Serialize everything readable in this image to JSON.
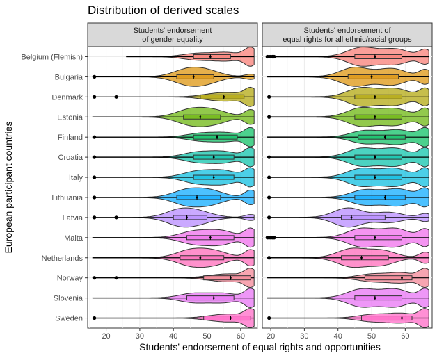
{
  "chart_data": {
    "type": "violin",
    "title": "Distribution of derived scales",
    "xlabel": "Students' endorsement of equal rights and opportunities",
    "ylabel": "European participant countries",
    "xticks": [
      20,
      30,
      40,
      50,
      60
    ],
    "countries": [
      "Belgium (Flemish)",
      "Bulgaria",
      "Denmark",
      "Estonia",
      "Finland",
      "Croatia",
      "Italy",
      "Lithuania",
      "Latvia",
      "Malta",
      "Netherlands",
      "Norway",
      "Slovenia",
      "Sweden"
    ],
    "colors": [
      "#F8766D",
      "#DB8E00",
      "#AEA200",
      "#64B200",
      "#00BD5C",
      "#00C1A7",
      "#00BADE",
      "#00A6FF",
      "#B385FF",
      "#EF67EB",
      "#FF63B6",
      "#F47F90",
      "#E76BF3",
      "#FF61C3"
    ],
    "panels": [
      {
        "strip": [
          "Students' endorsement",
          "of gender equality"
        ],
        "xlim": [
          14.5,
          65
        ],
        "series": [
          {
            "country": "Belgium (Flemish)",
            "min": 26,
            "max": 64,
            "q1": 46,
            "median": 51,
            "q3": 57,
            "peaks": [
              [
                47,
                0.35
              ],
              [
                56,
                0.45
              ],
              [
                63,
                0.95
              ]
            ],
            "outliers": []
          },
          {
            "country": "Bulgaria",
            "min": 16,
            "max": 64,
            "q1": 41,
            "median": 46,
            "q3": 52,
            "peaks": [
              [
                44,
                0.55
              ],
              [
                50,
                0.45
              ],
              [
                63,
                0.2
              ]
            ],
            "outliers": [
              16.5
            ]
          },
          {
            "country": "Denmark",
            "min": 16,
            "max": 64,
            "q1": 48,
            "median": 55,
            "q3": 61,
            "peaks": [
              [
                52,
                0.3
              ],
              [
                58,
                0.35
              ],
              [
                63,
                0.95
              ]
            ],
            "outliers": [
              16.5,
              23
            ]
          },
          {
            "country": "Estonia",
            "min": 16,
            "max": 64,
            "q1": 43,
            "median": 48,
            "q3": 54,
            "peaks": [
              [
                45,
                0.45
              ],
              [
                52,
                0.4
              ],
              [
                63,
                0.45
              ]
            ],
            "outliers": []
          },
          {
            "country": "Finland",
            "min": 16,
            "max": 64,
            "q1": 46,
            "median": 53,
            "q3": 59,
            "peaks": [
              [
                48,
                0.35
              ],
              [
                56,
                0.4
              ],
              [
                63,
                0.85
              ]
            ],
            "outliers": [
              16.5
            ]
          },
          {
            "country": "Croatia",
            "min": 16,
            "max": 64,
            "q1": 46,
            "median": 52,
            "q3": 58,
            "peaks": [
              [
                47,
                0.4
              ],
              [
                55,
                0.45
              ],
              [
                63,
                0.75
              ]
            ],
            "outliers": [
              16.5
            ]
          },
          {
            "country": "Italy",
            "min": 16,
            "max": 64,
            "q1": 46,
            "median": 52,
            "q3": 58,
            "peaks": [
              [
                47,
                0.4
              ],
              [
                55,
                0.45
              ],
              [
                63,
                0.6
              ]
            ],
            "outliers": [
              16.5
            ]
          },
          {
            "country": "Lithuania",
            "min": 16,
            "max": 64,
            "q1": 41,
            "median": 47,
            "q3": 54,
            "peaks": [
              [
                44,
                0.45
              ],
              [
                51,
                0.4
              ],
              [
                63,
                0.45
              ]
            ],
            "outliers": [
              16.5
            ]
          },
          {
            "country": "Latvia",
            "min": 16,
            "max": 64,
            "q1": 40,
            "median": 44,
            "q3": 50,
            "peaks": [
              [
                42,
                0.65
              ],
              [
                48,
                0.4
              ],
              [
                63,
                0.25
              ]
            ],
            "outliers": [
              16.5,
              23
            ]
          },
          {
            "country": "Malta",
            "min": 16,
            "max": 64,
            "q1": 44,
            "median": 51,
            "q3": 58,
            "peaks": [
              [
                46,
                0.4
              ],
              [
                54,
                0.45
              ],
              [
                63,
                0.6
              ]
            ],
            "outliers": []
          },
          {
            "country": "Netherlands",
            "min": 16,
            "max": 64,
            "q1": 42,
            "median": 48,
            "q3": 55,
            "peaks": [
              [
                45,
                0.45
              ],
              [
                52,
                0.4
              ],
              [
                63,
                0.5
              ]
            ],
            "outliers": []
          },
          {
            "country": "Norway",
            "min": 16,
            "max": 64,
            "q1": 49,
            "median": 57,
            "q3": 63,
            "peaks": [
              [
                53,
                0.3
              ],
              [
                59,
                0.35
              ],
              [
                63,
                1.0
              ]
            ],
            "outliers": [
              16.5,
              23
            ]
          },
          {
            "country": "Slovenia",
            "min": 16,
            "max": 64,
            "q1": 44,
            "median": 52,
            "q3": 58,
            "peaks": [
              [
                46,
                0.4
              ],
              [
                55,
                0.4
              ],
              [
                63,
                0.8
              ]
            ],
            "outliers": []
          },
          {
            "country": "Sweden",
            "min": 16,
            "max": 64,
            "q1": 49,
            "median": 57,
            "q3": 63,
            "peaks": [
              [
                53,
                0.3
              ],
              [
                59,
                0.35
              ],
              [
                63,
                1.0
              ]
            ],
            "outliers": [
              16.5
            ]
          }
        ]
      },
      {
        "strip": [
          "Students' endorsement of",
          "equal rights for all ethnic/racial groups"
        ],
        "xlim": [
          17.5,
          68
        ],
        "series": [
          {
            "country": "Belgium (Flemish)",
            "min": 19,
            "max": 67,
            "q1": 45,
            "median": 51,
            "q3": 59,
            "peaks": [
              [
                47,
                0.6
              ],
              [
                57,
                0.5
              ],
              [
                66,
                0.45
              ]
            ],
            "outliers": [
              19,
              19.5,
              20,
              20.5,
              21
            ]
          },
          {
            "country": "Bulgaria",
            "min": 19,
            "max": 67,
            "q1": 43,
            "median": 50,
            "q3": 58,
            "peaks": [
              [
                45,
                0.4
              ],
              [
                56,
                0.35
              ],
              [
                66,
                0.3
              ]
            ],
            "outliers": []
          },
          {
            "country": "Denmark",
            "min": 19,
            "max": 67,
            "q1": 45,
            "median": 51,
            "q3": 59,
            "peaks": [
              [
                47,
                0.5
              ],
              [
                57,
                0.45
              ],
              [
                66,
                0.45
              ]
            ],
            "outliers": [
              19.5
            ]
          },
          {
            "country": "Estonia",
            "min": 19,
            "max": 67,
            "q1": 45,
            "median": 51,
            "q3": 59,
            "peaks": [
              [
                47,
                0.5
              ],
              [
                57,
                0.45
              ],
              [
                66,
                0.45
              ]
            ],
            "outliers": [
              19.5
            ]
          },
          {
            "country": "Finland",
            "min": 19,
            "max": 67,
            "q1": 46,
            "median": 54,
            "q3": 60,
            "peaks": [
              [
                48,
                0.45
              ],
              [
                58,
                0.5
              ],
              [
                66,
                0.6
              ]
            ],
            "outliers": []
          },
          {
            "country": "Croatia",
            "min": 19,
            "max": 67,
            "q1": 45,
            "median": 51,
            "q3": 59,
            "peaks": [
              [
                47,
                0.5
              ],
              [
                57,
                0.5
              ],
              [
                66,
                0.5
              ]
            ],
            "outliers": [
              19.5
            ]
          },
          {
            "country": "Italy",
            "min": 19,
            "max": 67,
            "q1": 45,
            "median": 51,
            "q3": 59,
            "peaks": [
              [
                47,
                0.5
              ],
              [
                57,
                0.5
              ],
              [
                66,
                0.5
              ]
            ],
            "outliers": [
              19.5
            ]
          },
          {
            "country": "Lithuania",
            "min": 19,
            "max": 67,
            "q1": 45,
            "median": 54,
            "q3": 60,
            "peaks": [
              [
                48,
                0.45
              ],
              [
                58,
                0.5
              ],
              [
                66,
                0.5
              ]
            ],
            "outliers": [
              19.5
            ]
          },
          {
            "country": "Latvia",
            "min": 19,
            "max": 67,
            "q1": 41,
            "median": 44,
            "q3": 54,
            "peaks": [
              [
                43,
                0.75
              ],
              [
                55,
                0.4
              ],
              [
                66,
                0.3
              ]
            ],
            "outliers": [
              19.5
            ]
          },
          {
            "country": "Malta",
            "min": 19,
            "max": 67,
            "q1": 45,
            "median": 51,
            "q3": 59,
            "peaks": [
              [
                47,
                0.55
              ],
              [
                57,
                0.55
              ],
              [
                66,
                0.5
              ]
            ],
            "outliers": [
              19,
              19.5,
              20,
              20.5,
              21
            ]
          },
          {
            "country": "Netherlands",
            "min": 19,
            "max": 67,
            "q1": 41,
            "median": 47,
            "q3": 55,
            "peaks": [
              [
                44,
                0.55
              ],
              [
                53,
                0.45
              ],
              [
                66,
                0.35
              ]
            ],
            "outliers": [
              19.5
            ]
          },
          {
            "country": "Norway",
            "min": 19,
            "max": 67,
            "q1": 48,
            "median": 59,
            "q3": 62,
            "peaks": [
              [
                50,
                0.4
              ],
              [
                59,
                0.55
              ],
              [
                66,
                0.95
              ]
            ],
            "outliers": []
          },
          {
            "country": "Slovenia",
            "min": 19,
            "max": 67,
            "q1": 45,
            "median": 51,
            "q3": 59,
            "peaks": [
              [
                47,
                0.5
              ],
              [
                57,
                0.5
              ],
              [
                66,
                0.5
              ]
            ],
            "outliers": []
          },
          {
            "country": "Sweden",
            "min": 19,
            "max": 67,
            "q1": 47,
            "median": 59,
            "q3": 62,
            "peaks": [
              [
                50,
                0.4
              ],
              [
                59,
                0.55
              ],
              [
                66,
                1.0
              ]
            ],
            "outliers": [
              19.5
            ]
          }
        ]
      }
    ]
  }
}
